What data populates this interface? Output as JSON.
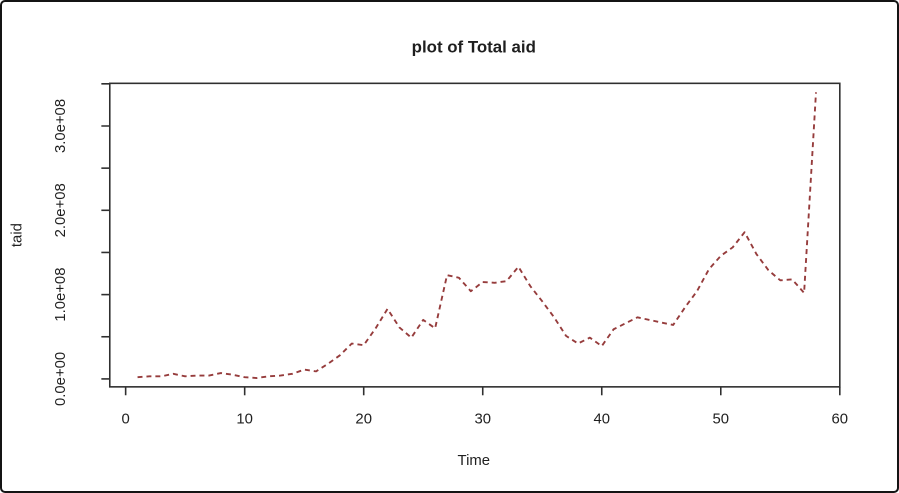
{
  "frame": {
    "border_color": "#141414",
    "background": "#ffffff"
  },
  "chart_data": {
    "type": "line",
    "title": "plot of Total aid",
    "xlabel": "Time",
    "ylabel": "taid",
    "series_name": "Total aid",
    "line_style": "dashed",
    "line_color": "#963c3c",
    "axis_color": "#2f2f2f",
    "grid": false,
    "legend": null,
    "xlim": [
      0,
      60
    ],
    "ylim": [
      0,
      350000000.0
    ],
    "x_ticks": [
      0,
      10,
      20,
      30,
      40,
      50,
      60
    ],
    "y_ticks": [
      {
        "value": 0,
        "label": "0.0e+00"
      },
      {
        "value": 50000000.0,
        "label": ""
      },
      {
        "value": 100000000.0,
        "label": "1.0e+08"
      },
      {
        "value": 150000000.0,
        "label": ""
      },
      {
        "value": 200000000.0,
        "label": "2.0e+08"
      },
      {
        "value": 250000000.0,
        "label": ""
      },
      {
        "value": 300000000.0,
        "label": "3.0e+08"
      },
      {
        "value": 350000000.0,
        "label": ""
      }
    ],
    "x": [
      1,
      2,
      3,
      4,
      5,
      6,
      7,
      8,
      9,
      10,
      11,
      12,
      13,
      14,
      15,
      16,
      17,
      18,
      19,
      20,
      21,
      22,
      23,
      24,
      25,
      26,
      27,
      28,
      29,
      30,
      31,
      32,
      33,
      34,
      35,
      36,
      37,
      38,
      39,
      40,
      41,
      42,
      43,
      44,
      45,
      46,
      47,
      48,
      49,
      50,
      51,
      52,
      53,
      54,
      55,
      56,
      57,
      58
    ],
    "values": [
      2000000.0,
      3000000.0,
      3000000.0,
      6000000.0,
      3000000.0,
      4000000.0,
      4000000.0,
      7000000.0,
      5000000.0,
      2000000.0,
      1000000.0,
      3000000.0,
      4000000.0,
      6000000.0,
      11000000.0,
      9000000.0,
      18000000.0,
      28000000.0,
      42000000.0,
      40000000.0,
      60000000.0,
      83000000.0,
      61000000.0,
      49000000.0,
      70000000.0,
      60000000.0,
      123000000.0,
      120000000.0,
      104000000.0,
      115000000.0,
      114000000.0,
      116000000.0,
      133000000.0,
      110000000.0,
      92000000.0,
      73000000.0,
      51000000.0,
      42000000.0,
      49000000.0,
      39000000.0,
      59000000.0,
      66000000.0,
      73000000.0,
      70000000.0,
      67000000.0,
      64000000.0,
      85000000.0,
      104000000.0,
      130000000.0,
      146000000.0,
      156000000.0,
      174000000.0,
      148000000.0,
      129000000.0,
      117000000.0,
      118000000.0,
      102000000.0,
      340000000.0
    ]
  }
}
